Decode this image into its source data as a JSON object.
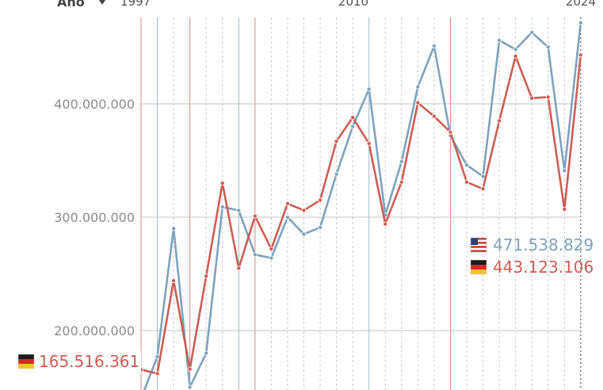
{
  "chart_data": {
    "type": "line",
    "axis_title": "Año",
    "x_start_label": "1997",
    "x_mid_label": "2010",
    "x_end_label": "2024",
    "x": [
      1997,
      1998,
      1999,
      2000,
      2001,
      2002,
      2003,
      2004,
      2005,
      2006,
      2007,
      2008,
      2009,
      2010,
      2011,
      2012,
      2013,
      2014,
      2015,
      2016,
      2017,
      2018,
      2019,
      2020,
      2021,
      2022,
      2023,
      2024
    ],
    "y_ticks": [
      {
        "value": 200000000,
        "label": "200.000.000"
      },
      {
        "value": 300000000,
        "label": "300.000.000"
      },
      {
        "value": 400000000,
        "label": "400.000.000"
      }
    ],
    "ylim": [
      150000000,
      480000000
    ],
    "series": [
      {
        "key": "us",
        "flag": "us-flag-icon",
        "color": "#7fa3bd",
        "values": [
          140000000,
          177000000,
          290000000,
          150000000,
          180000000,
          309000000,
          306000000,
          267000000,
          264000000,
          300000000,
          285000000,
          291000000,
          338000000,
          380000000,
          413000000,
          302000000,
          349000000,
          415000000,
          451000000,
          372000000,
          346000000,
          336000000,
          456000000,
          448000000,
          463000000,
          450000000,
          341000000,
          471538829
        ],
        "start_label": "",
        "end_label": "471.538.829"
      },
      {
        "key": "de",
        "flag": "germany-flag-icon",
        "color": "#cc5e55",
        "values": [
          165516361,
          162000000,
          244000000,
          166000000,
          248000000,
          330000000,
          255000000,
          301000000,
          272000000,
          312000000,
          306000000,
          315000000,
          367000000,
          388000000,
          365000000,
          294000000,
          331000000,
          401000000,
          389000000,
          375000000,
          331000000,
          325000000,
          385000000,
          442000000,
          405000000,
          406000000,
          307000000,
          443123106
        ],
        "start_label": "165.516.361",
        "end_label": "443.123.106"
      }
    ]
  }
}
